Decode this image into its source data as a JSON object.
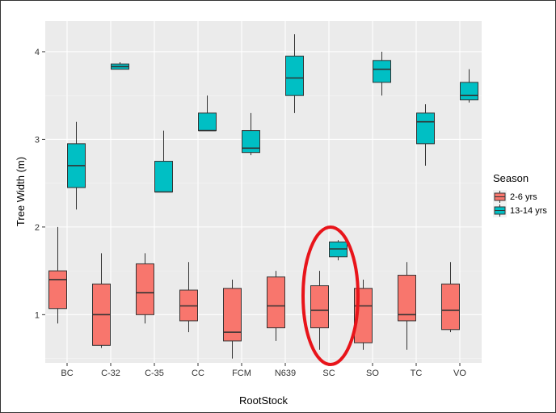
{
  "chart_data": {
    "type": "boxplot",
    "title": "",
    "xlabel": "RootStock",
    "ylabel": "Tree Width (m)",
    "ylim": [
      0.45,
      4.35
    ],
    "yticks": [
      1,
      2,
      3,
      4
    ],
    "grid": true,
    "legend_placement": "right",
    "categories": [
      "BC",
      "C-32",
      "C-35",
      "CC",
      "FCM",
      "N639",
      "SC",
      "SO",
      "TC",
      "VO"
    ],
    "legend": {
      "title": "Season"
    },
    "series": [
      {
        "name": "2-6 yrs",
        "color": "#f8766d",
        "boxes": [
          {
            "category": "BC",
            "min": 0.9,
            "q1": 1.07,
            "median": 1.4,
            "q3": 1.5,
            "max": 2.0
          },
          {
            "category": "C-32",
            "min": 0.62,
            "q1": 0.65,
            "median": 1.0,
            "q3": 1.35,
            "max": 1.7
          },
          {
            "category": "C-35",
            "min": 0.9,
            "q1": 1.0,
            "median": 1.25,
            "q3": 1.58,
            "max": 1.7
          },
          {
            "category": "CC",
            "min": 0.8,
            "q1": 0.93,
            "median": 1.1,
            "q3": 1.28,
            "max": 1.6
          },
          {
            "category": "FCM",
            "min": 0.5,
            "q1": 0.7,
            "median": 0.8,
            "q3": 1.3,
            "max": 1.4
          },
          {
            "category": "N639",
            "min": 0.7,
            "q1": 0.85,
            "median": 1.1,
            "q3": 1.43,
            "max": 1.5
          },
          {
            "category": "SC",
            "min": 0.6,
            "q1": 0.85,
            "median": 1.05,
            "q3": 1.33,
            "max": 1.5
          },
          {
            "category": "SO",
            "min": 0.6,
            "q1": 0.68,
            "median": 1.1,
            "q3": 1.3,
            "max": 1.4
          },
          {
            "category": "TC",
            "min": 0.6,
            "q1": 0.93,
            "median": 1.0,
            "q3": 1.45,
            "max": 1.6
          },
          {
            "category": "VO",
            "min": 0.8,
            "q1": 0.83,
            "median": 1.05,
            "q3": 1.35,
            "max": 1.6
          }
        ]
      },
      {
        "name": "13-14 yrs",
        "color": "#00bfc4",
        "boxes": [
          {
            "category": "BC",
            "min": 2.2,
            "q1": 2.45,
            "median": 2.7,
            "q3": 2.95,
            "max": 3.2
          },
          {
            "category": "C-32",
            "min": 3.8,
            "q1": 3.8,
            "median": 3.83,
            "q3": 3.86,
            "max": 3.88
          },
          {
            "category": "C-35",
            "min": 2.4,
            "q1": 2.4,
            "median": 2.4,
            "q3": 2.75,
            "max": 3.1
          },
          {
            "category": "CC",
            "min": 3.1,
            "q1": 3.1,
            "median": 3.1,
            "q3": 3.3,
            "max": 3.5
          },
          {
            "category": "FCM",
            "min": 2.82,
            "q1": 2.85,
            "median": 2.9,
            "q3": 3.1,
            "max": 3.3
          },
          {
            "category": "N639",
            "min": 3.3,
            "q1": 3.5,
            "median": 3.7,
            "q3": 3.95,
            "max": 4.2
          },
          {
            "category": "SC",
            "min": 1.62,
            "q1": 1.66,
            "median": 1.75,
            "q3": 1.83,
            "max": 1.85
          },
          {
            "category": "SO",
            "min": 3.5,
            "q1": 3.65,
            "median": 3.8,
            "q3": 3.9,
            "max": 4.0
          },
          {
            "category": "TC",
            "min": 2.7,
            "q1": 2.95,
            "median": 3.2,
            "q3": 3.3,
            "max": 3.4
          },
          {
            "category": "VO",
            "min": 3.42,
            "q1": 3.45,
            "median": 3.5,
            "q3": 3.65,
            "max": 3.8
          }
        ]
      }
    ],
    "annotations": [
      {
        "shape": "ellipse",
        "color": "#e8141a",
        "highlights": "SC"
      }
    ]
  }
}
